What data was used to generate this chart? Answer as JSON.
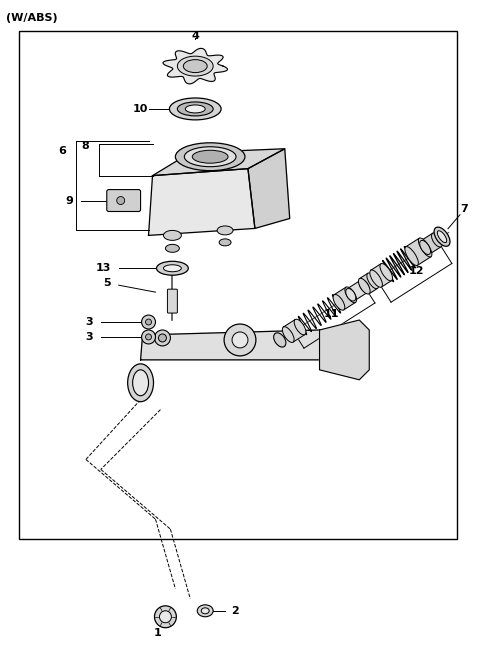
{
  "title": "(W/ABS)",
  "bg": "#ffffff",
  "lc": "#000000",
  "fig_w": 4.8,
  "fig_h": 6.55,
  "dpi": 100
}
